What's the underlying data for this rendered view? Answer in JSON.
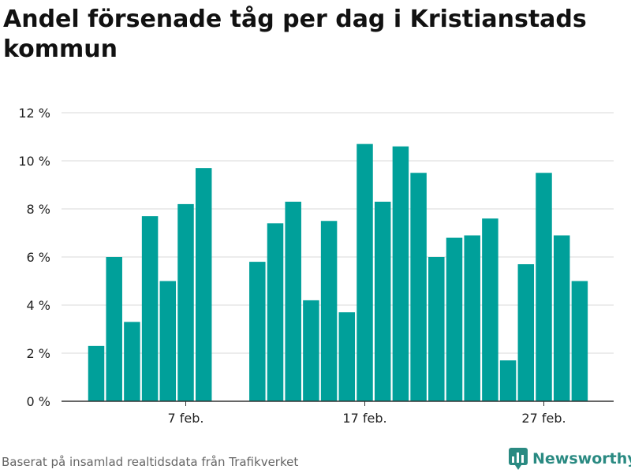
{
  "title": "Andel försenade tåg per dag i Kristianstads kommun",
  "footer": "Baserat på insamlad realtidsdata från Trafikverket",
  "brand": "Newsworthy",
  "colors": {
    "bar": "#00a09a",
    "grid": "#d9d9d9",
    "axis": "#333333",
    "brand": "#2a8a82"
  },
  "chart_data": {
    "type": "bar",
    "title": "Andel försenade tåg per dag i Kristianstads kommun",
    "xlabel": "",
    "ylabel": "",
    "ylim": [
      0,
      12
    ],
    "yticks": [
      0,
      2,
      4,
      6,
      8,
      10,
      12
    ],
    "ytick_suffix": " %",
    "x_day_range": [
      1,
      29
    ],
    "x_tick_labels": [
      {
        "day": 7,
        "label": "7 feb."
      },
      {
        "day": 17,
        "label": "17 feb."
      },
      {
        "day": 27,
        "label": "27 feb."
      }
    ],
    "days": [
      2,
      3,
      4,
      5,
      6,
      7,
      8,
      11,
      12,
      13,
      14,
      15,
      16,
      17,
      18,
      19,
      20,
      21,
      22,
      23,
      24,
      25,
      26,
      27,
      28,
      29
    ],
    "values": [
      2.3,
      6.0,
      3.3,
      7.7,
      5.0,
      8.2,
      9.7,
      5.8,
      7.4,
      8.3,
      4.2,
      7.5,
      3.7,
      10.7,
      8.3,
      10.6,
      9.5,
      6.0,
      6.8,
      6.9,
      7.6,
      1.7,
      5.7,
      9.5,
      6.9,
      5.0
    ],
    "grid": true
  }
}
